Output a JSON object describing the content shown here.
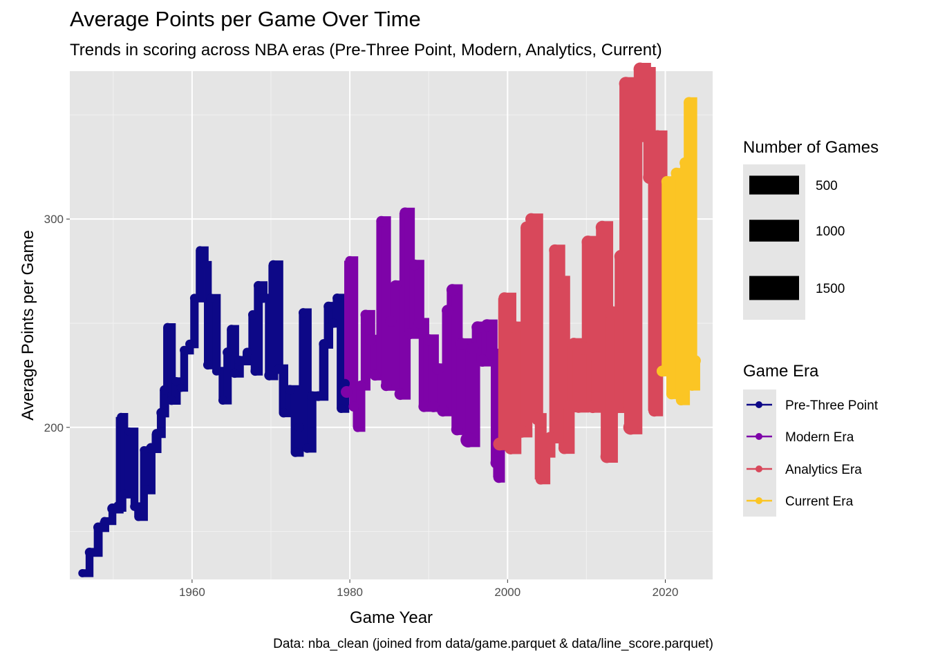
{
  "chart_data": {
    "type": "line",
    "title": "Average Points per Game Over Time",
    "subtitle": "Trends in scoring across NBA eras (Pre-Three Point, Modern, Analytics, Current)",
    "caption": "Data: nba_clean (joined from data/game.parquet & data/line_score.parquet)",
    "xlabel": "Game Year",
    "ylabel": "Average Points per Game",
    "xlim": [
      1944.5,
      2026
    ],
    "ylim": [
      127,
      371
    ],
    "x_ticks": [
      "1960",
      "1980",
      "2000",
      "2020"
    ],
    "y_ticks": [
      "200",
      "300"
    ],
    "grid": true,
    "legend_position": "right",
    "size_legend": {
      "title": "Number of Games",
      "labels": [
        "500",
        "1000",
        "1500"
      ]
    },
    "series": [
      {
        "name": "Pre-Three Point",
        "color": "#0d0887",
        "points": [
          [
            1946.1,
            130,
            200
          ],
          [
            1947.0,
            140,
            300
          ],
          [
            1948.1,
            152,
            350
          ],
          [
            1948.9,
            155,
            200
          ],
          [
            1949.9,
            161,
            400
          ],
          [
            1950.7,
            162,
            500
          ],
          [
            1951.0,
            205,
            200
          ],
          [
            1951.4,
            168,
            300
          ],
          [
            1952.0,
            198,
            200
          ],
          [
            1952.7,
            162,
            250
          ],
          [
            1953.2,
            157,
            200
          ],
          [
            1953.9,
            189,
            200
          ],
          [
            1954.1,
            170,
            300
          ],
          [
            1954.8,
            190,
            400
          ],
          [
            1955.5,
            197,
            300
          ],
          [
            1956.1,
            207,
            350
          ],
          [
            1956.5,
            218,
            300
          ],
          [
            1956.9,
            248,
            250
          ],
          [
            1957.4,
            213,
            300
          ],
          [
            1958.0,
            222,
            250
          ],
          [
            1958.6,
            219,
            200
          ],
          [
            1959.0,
            237,
            250
          ],
          [
            1959.7,
            240,
            250
          ],
          [
            1960.3,
            262,
            250
          ],
          [
            1961.0,
            285,
            200
          ],
          [
            1961.6,
            278,
            200
          ],
          [
            1962.0,
            230,
            300
          ],
          [
            1962.4,
            262,
            250
          ],
          [
            1963.1,
            227,
            250
          ],
          [
            1963.9,
            213,
            250
          ],
          [
            1964.5,
            236,
            350
          ],
          [
            1965.0,
            247,
            300
          ],
          [
            1965.4,
            226,
            300
          ],
          [
            1966.0,
            232,
            350
          ],
          [
            1967.0,
            236,
            300
          ],
          [
            1967.7,
            254,
            300
          ],
          [
            1968.0,
            227,
            300
          ],
          [
            1968.4,
            268,
            300
          ],
          [
            1969.0,
            262,
            300
          ],
          [
            1969.8,
            225,
            400
          ],
          [
            1970.3,
            278,
            300
          ],
          [
            1971.0,
            228,
            350
          ],
          [
            1971.6,
            207,
            300
          ],
          [
            1972.4,
            218,
            350
          ],
          [
            1973.1,
            188,
            300
          ],
          [
            1973.6,
            200,
            300
          ],
          [
            1974.1,
            255,
            300
          ],
          [
            1974.6,
            190,
            300
          ],
          [
            1975.2,
            215,
            350
          ],
          [
            1976.0,
            215,
            350
          ],
          [
            1976.7,
            240,
            350
          ],
          [
            1977.3,
            258,
            350
          ],
          [
            1977.9,
            250,
            300
          ],
          [
            1978.4,
            262,
            300
          ],
          [
            1978.9,
            209,
            250
          ],
          [
            1979.4,
            221,
            300
          ]
        ]
      },
      {
        "name": "Modern Era",
        "color": "#7e03a8",
        "points": [
          [
            1979.6,
            217,
            600
          ],
          [
            1980.0,
            280,
            300
          ],
          [
            1980.5,
            210,
            400
          ],
          [
            1981.0,
            200,
            300
          ],
          [
            1981.4,
            220,
            400
          ],
          [
            1982.0,
            254,
            400
          ],
          [
            1982.6,
            242,
            450
          ],
          [
            1983.2,
            225,
            450
          ],
          [
            1984.0,
            299,
            400
          ],
          [
            1984.6,
            220,
            450
          ],
          [
            1985.2,
            251,
            500
          ],
          [
            1985.8,
            268,
            500
          ],
          [
            1986.4,
            216,
            600
          ],
          [
            1987.0,
            303,
            450
          ],
          [
            1987.6,
            245,
            500
          ],
          [
            1988.2,
            278,
            450
          ],
          [
            1988.8,
            250,
            500
          ],
          [
            1989.4,
            210,
            500
          ],
          [
            1990.0,
            242,
            550
          ],
          [
            1990.6,
            210,
            550
          ],
          [
            1991.2,
            228,
            600
          ],
          [
            1991.8,
            208,
            600
          ],
          [
            1992.4,
            256,
            600
          ],
          [
            1993.0,
            266,
            600
          ],
          [
            1993.6,
            199,
            600
          ],
          [
            1994.2,
            240,
            650
          ],
          [
            1995.0,
            194,
            1200
          ],
          [
            1995.6,
            238,
            650
          ],
          [
            1996.2,
            248,
            650
          ],
          [
            1996.8,
            232,
            650
          ],
          [
            1997.4,
            249,
            650
          ],
          [
            1998.0,
            235,
            650
          ],
          [
            1998.6,
            183,
            650
          ],
          [
            1998.9,
            176,
            500
          ]
        ]
      },
      {
        "name": "Analytics Era",
        "color": "#d8485b",
        "points": [
          [
            1999.0,
            192,
            800
          ],
          [
            1999.6,
            262,
            600
          ],
          [
            2000.4,
            190,
            700
          ],
          [
            2001.0,
            248,
            650
          ],
          [
            2001.8,
            198,
            700
          ],
          [
            2002.4,
            296,
            600
          ],
          [
            2003.0,
            300,
            600
          ],
          [
            2003.8,
            204,
            700
          ],
          [
            2004.2,
            175,
            400
          ],
          [
            2004.8,
            188,
            500
          ],
          [
            2005.4,
            195,
            600
          ],
          [
            2006.0,
            285,
            600
          ],
          [
            2006.6,
            270,
            650
          ],
          [
            2007.2,
            190,
            600
          ],
          [
            2007.8,
            210,
            650
          ],
          [
            2008.4,
            240,
            700
          ],
          [
            2009.0,
            210,
            750
          ],
          [
            2009.6,
            238,
            800
          ],
          [
            2010.2,
            289,
            750
          ],
          [
            2010.8,
            210,
            800
          ],
          [
            2011.4,
            233,
            800
          ],
          [
            2012.0,
            296,
            800
          ],
          [
            2012.6,
            186,
            800
          ],
          [
            2013.2,
            255,
            850
          ],
          [
            2013.8,
            210,
            900
          ],
          [
            2014.4,
            282,
            900
          ],
          [
            2015.0,
            365,
            900
          ],
          [
            2015.6,
            200,
            1100
          ],
          [
            2016.2,
            340,
            850
          ],
          [
            2016.8,
            372,
            800
          ],
          [
            2017.4,
            370,
            800
          ],
          [
            2018.0,
            320,
            800
          ],
          [
            2018.6,
            208,
            600
          ],
          [
            2019.0,
            340,
            500
          ]
        ]
      },
      {
        "name": "Current Era",
        "color": "#fbc524",
        "points": [
          [
            2019.6,
            227,
            500
          ],
          [
            2020.2,
            318,
            500
          ],
          [
            2020.8,
            216,
            450
          ],
          [
            2021.4,
            322,
            500
          ],
          [
            2022.0,
            213,
            400
          ],
          [
            2022.5,
            327,
            500
          ],
          [
            2023.0,
            356,
            450
          ],
          [
            2023.4,
            220,
            400
          ],
          [
            2023.8,
            232,
            500
          ]
        ]
      }
    ]
  }
}
